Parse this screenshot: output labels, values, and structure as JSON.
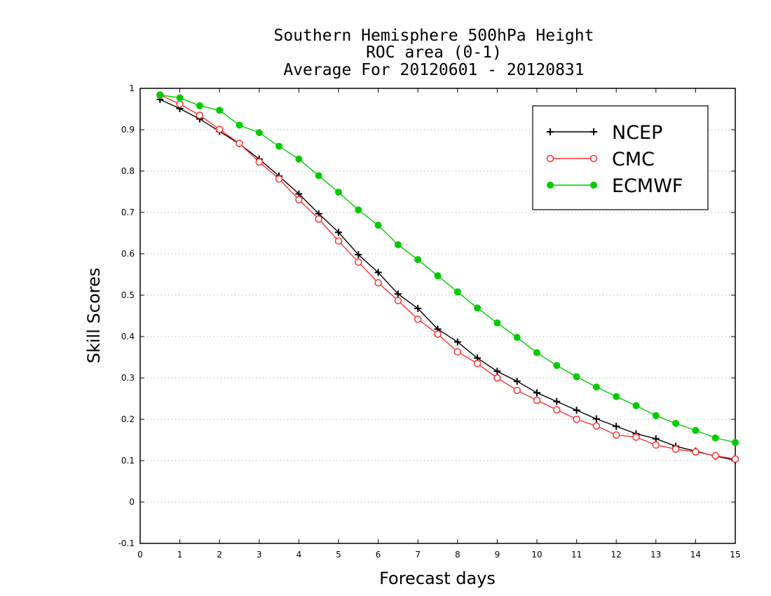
{
  "chart_data": {
    "type": "line",
    "title_lines": [
      "Southern Hemisphere 500hPa Height",
      "ROC area (0-1)",
      "Average For 20120601 - 20120831"
    ],
    "xlabel": "Forecast days",
    "ylabel": "Skill Scores",
    "xlim": [
      0,
      15
    ],
    "ylim": [
      -0.1,
      1
    ],
    "x_ticks": [
      "0",
      "1",
      "2",
      "3",
      "4",
      "5",
      "6",
      "7",
      "8",
      "9",
      "10",
      "11",
      "12",
      "13",
      "14",
      "15"
    ],
    "y_ticks": [
      "-0.1",
      "0",
      "0.1",
      "0.2",
      "0.3",
      "0.4",
      "0.5",
      "0.6",
      "0.7",
      "0.8",
      "0.9",
      "1"
    ],
    "grid": "horizontal dotted",
    "legend_position": "top-right",
    "x": [
      0.5,
      1,
      1.5,
      2,
      2.5,
      3,
      3.5,
      4,
      4.5,
      5,
      5.5,
      6,
      6.5,
      7,
      7.5,
      8,
      8.5,
      9,
      9.5,
      10,
      10.5,
      11,
      11.5,
      12,
      12.5,
      13,
      13.5,
      14,
      14.5,
      15
    ],
    "series": [
      {
        "name": "NCEP",
        "color": "#000000",
        "marker": "plus",
        "values": [
          0.973,
          0.951,
          0.926,
          0.896,
          0.866,
          0.829,
          0.788,
          0.745,
          0.697,
          0.652,
          0.598,
          0.555,
          0.503,
          0.468,
          0.418,
          0.387,
          0.348,
          0.316,
          0.292,
          0.264,
          0.243,
          0.222,
          0.201,
          0.183,
          0.165,
          0.153,
          0.135,
          0.123,
          0.111,
          0.101
        ]
      },
      {
        "name": "CMC",
        "color": "#ff3030",
        "marker": "open-circle",
        "values": [
          0.984,
          0.962,
          0.935,
          0.901,
          0.867,
          0.822,
          0.781,
          0.731,
          0.684,
          0.631,
          0.58,
          0.53,
          0.487,
          0.442,
          0.406,
          0.363,
          0.335,
          0.3,
          0.27,
          0.246,
          0.223,
          0.2,
          0.184,
          0.162,
          0.157,
          0.138,
          0.128,
          0.121,
          0.112,
          0.104
        ]
      },
      {
        "name": "ECMWF",
        "color": "#00cc00",
        "marker": "filled-circle",
        "values": [
          0.984,
          0.977,
          0.958,
          0.947,
          0.911,
          0.893,
          0.86,
          0.829,
          0.789,
          0.749,
          0.706,
          0.669,
          0.622,
          0.586,
          0.547,
          0.508,
          0.469,
          0.433,
          0.398,
          0.361,
          0.33,
          0.303,
          0.278,
          0.255,
          0.233,
          0.209,
          0.19,
          0.173,
          0.155,
          0.144
        ]
      }
    ]
  }
}
